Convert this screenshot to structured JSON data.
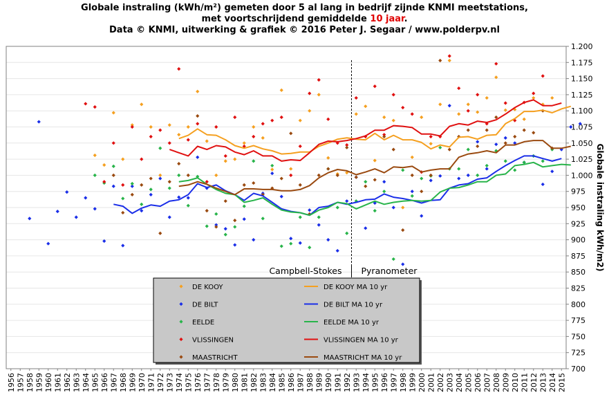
{
  "title": {
    "line1": "Globale instraling (kWh/m²) gemeten door 5 al lang in bedrijf zijnde KNMI meetstations,",
    "line2_pre": "met voortschrijdend gemiddelde",
    "line2_num": "10 jaar",
    "line2_post": ".",
    "line3": "Data © KNMI, uitwerking & grafiek © 2016 Peter J. Segaar / www.polderpv.nl"
  },
  "colors": {
    "de_kooy": "#f5a020",
    "de_bilt": "#1a2ee8",
    "eelde": "#28b44a",
    "vlissingen": "#e01010",
    "maastricht": "#9a4a10"
  },
  "chart_data": {
    "type": "scatter",
    "x_label_start": 1956,
    "x_label_end": 2015,
    "ylim": [
      700,
      1200
    ],
    "ystep": 25,
    "ylabel": "Globale instraling kWh/m2)",
    "y_axis_side": "right",
    "legend_placement": "bottom-center",
    "annotations": {
      "left": "Campbell-Stokes",
      "right": "Pyranometer",
      "divider_year": 1992
    },
    "scatter_series": [
      {
        "name": "DE KOOY",
        "color_key": "de_kooy",
        "start": 1965,
        "values": [
          1031,
          1016,
          1097,
          1025,
          1078,
          1110,
          1075,
          1000,
          1078,
          1063,
          1075,
          1130,
          1053,
          1000,
          1022,
          1025,
          1050,
          1075,
          1058,
          1009,
          1132,
          1010,
          1085,
          1100,
          1125,
          1027,
          1002,
          1004,
          1095,
          1107,
          1023,
          1090,
          1085,
          950,
          1028,
          1090,
          1049,
          1110,
          1178,
          1095,
          1110,
          1098,
          1120,
          1152,
          1101,
          1102,
          1087,
          1120,
          1110,
          1120
        ]
      },
      {
        "name": "DE BILT",
        "color_key": "de_bilt",
        "start": 1958,
        "values": [
          933,
          1083,
          894,
          944,
          974,
          935,
          965,
          948,
          898,
          983,
          891,
          983,
          945,
          970,
          995,
          935,
          966,
          965,
          1028,
          980,
          923,
          917,
          892,
          932,
          900,
          972,
          1003,
          967,
          902,
          895,
          946,
          923,
          900,
          883,
          960,
          997,
          918,
          957,
          990,
          950,
          862,
          975,
          937,
          992,
          999,
          1108,
          995,
          1000,
          1052,
          1010,
          1048,
          1058,
          1050,
          1020,
          1030,
          986,
          1006,
          1040,
          1075,
          1080
        ]
      },
      {
        "name": "EELDE",
        "color_key": "eelde",
        "start": 1965,
        "values": [
          1000,
          988,
          1014,
          964,
          987,
          955,
          978,
          1042,
          980,
          1000,
          953,
          998,
          921,
          940,
          908,
          920,
          952,
          1022,
          933,
          1015,
          890,
          894,
          935,
          888,
          935,
          1010,
          950,
          910,
          960,
          990,
          945,
          975,
          870,
          1008,
          968,
          995,
          999,
          1043,
          1010,
          1010,
          1040,
          1000,
          1015,
          1038,
          1022,
          1008,
          1020,
          1030,
          1022,
          1040
        ]
      },
      {
        "name": "VLISSINGEN",
        "color_key": "vlissingen",
        "start": 1964,
        "values": [
          1111,
          1106,
          990,
          1050,
          985,
          1075,
          1025,
          1060,
          1070,
          1050,
          1165,
          1055,
          1080,
          990,
          1075,
          1030,
          1090,
          1045,
          1060,
          1080,
          1085,
          1090,
          1000,
          1045,
          1127,
          1148,
          1087,
          1050,
          1047,
          1120,
          1060,
          1138,
          1063,
          1125,
          1105,
          1095,
          1005,
          1060,
          1060,
          1185,
          1135,
          1100,
          1125,
          1080,
          1173,
          1112,
          1085,
          1113,
          1127,
          1154
        ]
      },
      {
        "name": "MAASTRICHT",
        "color_key": "maastricht",
        "start": 1967,
        "values": [
          1000,
          942,
          970,
          985,
          995,
          910,
          990,
          1018,
          1000,
          1092,
          945,
          920,
          960,
          930,
          985,
          988,
          970,
          980,
          995,
          1065,
          985,
          940,
          1000,
          1010,
          1000,
          1043,
          997,
          983,
          993,
          1060,
          1040,
          915,
          1000,
          975,
          1000,
          1178,
          1040,
          1060,
          1070,
          1045,
          1070,
          1090,
          1050,
          1060,
          1070,
          1066,
          1100,
          1042
        ]
      }
    ],
    "ma_series": [
      {
        "name": "DE KOOY MA 10 yr",
        "color_key": "de_kooy",
        "start": 1974,
        "values": [
          1057,
          1062,
          1072,
          1063,
          1062,
          1055,
          1046,
          1042,
          1046,
          1041,
          1038,
          1033,
          1034,
          1036,
          1036,
          1045,
          1050,
          1056,
          1058,
          1056,
          1055,
          1065,
          1055,
          1062,
          1055,
          1055,
          1051,
          1041,
          1047,
          1044,
          1059,
          1060,
          1056,
          1062,
          1063,
          1080,
          1088,
          1099,
          1099,
          1101,
          1097,
          1103,
          1107
        ]
      },
      {
        "name": "DE BILT MA 10 yr",
        "color_key": "de_bilt",
        "start": 1967,
        "values": [
          955,
          952,
          941,
          949,
          954,
          952,
          960,
          962,
          970,
          987,
          981,
          985,
          976,
          970,
          961,
          972,
          968,
          958,
          948,
          944,
          942,
          938,
          950,
          952,
          958,
          955,
          958,
          962,
          963,
          971,
          966,
          964,
          961,
          957,
          961,
          962,
          980,
          985,
          987,
          994,
          996,
          1006,
          1015,
          1023,
          1030,
          1030,
          1026,
          1022,
          1026
        ]
      },
      {
        "name": "EELDE MA 10 yr",
        "color_key": "eelde",
        "start": 1974,
        "values": [
          990,
          992,
          996,
          986,
          978,
          972,
          970,
          958,
          961,
          965,
          955,
          946,
          943,
          942,
          938,
          946,
          950,
          958,
          956,
          948,
          954,
          960,
          955,
          958,
          960,
          961,
          960,
          961,
          974,
          980,
          981,
          985,
          990,
          990,
          1000,
          1002,
          1015,
          1017,
          1020,
          1013,
          1015,
          1017,
          1016
        ]
      },
      {
        "name": "VLISSINGEN MA 10 yr",
        "color_key": "vlissingen",
        "start": 1973,
        "values": [
          1040,
          1035,
          1030,
          1045,
          1040,
          1046,
          1044,
          1036,
          1032,
          1038,
          1030,
          1030,
          1022,
          1024,
          1023,
          1035,
          1048,
          1053,
          1052,
          1054,
          1057,
          1061,
          1070,
          1070,
          1077,
          1076,
          1074,
          1064,
          1064,
          1061,
          1076,
          1080,
          1078,
          1084,
          1082,
          1086,
          1095,
          1105,
          1113,
          1117,
          1108,
          1108,
          1112
        ]
      },
      {
        "name": "MAASTRICHT MA 10 yr",
        "color_key": "maastricht",
        "start": 1974,
        "values": [
          983,
          985,
          990,
          986,
          980,
          975,
          970,
          979,
          979,
          978,
          978,
          976,
          976,
          978,
          984,
          996,
          1004,
          1009,
          1007,
          1001,
          1005,
          1010,
          1004,
          1013,
          1012,
          1014,
          1005,
          1008,
          1010,
          1010,
          1028,
          1033,
          1035,
          1038,
          1035,
          1047,
          1047,
          1052,
          1054,
          1054,
          1042,
          1042,
          1045
        ]
      }
    ],
    "legend": [
      {
        "label": "DE KOOY",
        "ma_label": "DE KOOY MA 10 yr",
        "color_key": "de_kooy"
      },
      {
        "label": "DE BILT",
        "ma_label": "DE BILT MA 10 yr",
        "color_key": "de_bilt"
      },
      {
        "label": "EELDE",
        "ma_label": "EELDE MA 10 yr",
        "color_key": "eelde"
      },
      {
        "label": "VLISSINGEN",
        "ma_label": "VLISSINGEN MA 10 yr",
        "color_key": "vlissingen"
      },
      {
        "label": "MAASTRICHT",
        "ma_label": "MAASTRICHT MA 10 yr",
        "color_key": "maastricht"
      }
    ]
  }
}
